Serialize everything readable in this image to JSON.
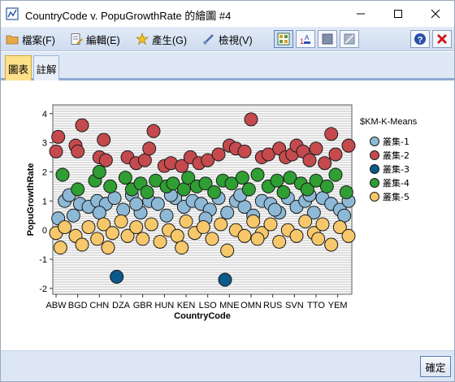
{
  "window": {
    "title": "CountryCode v. PopuGrowthRate 的繪圖 #4"
  },
  "menu": {
    "file": "檔案(F)",
    "edit": "編輯(E)",
    "generate": "產生(G)",
    "view": "檢視(V)"
  },
  "tabs": {
    "chart": "圖表",
    "notes": "註解"
  },
  "footer": {
    "ok_label": "確定"
  },
  "colors": {
    "cluster1": "#8db9d6",
    "cluster2": "#c44a4e",
    "cluster3": "#0a5a8c",
    "cluster4": "#2f9e33",
    "cluster5": "#f6c86b"
  },
  "chart_data": {
    "type": "scatter",
    "xlabel": "CountryCode",
    "ylabel": "PopuGrowthRate",
    "x_ticks": [
      "ABW",
      "BGD",
      "CHN",
      "DZA",
      "GBR",
      "HUN",
      "KEN",
      "LSO",
      "MNE",
      "OMN",
      "RUS",
      "SVN",
      "TTO",
      "YEM"
    ],
    "y_ticks": [
      -2,
      -1,
      0,
      1,
      2,
      3,
      4
    ],
    "ylim": [
      -2.2,
      4.3
    ],
    "legend_title": "$KM-K-Means",
    "legend_position": "right",
    "series": [
      {
        "name": "叢集-1",
        "color": "#8db9d6",
        "points": [
          [
            0.1,
            0.4
          ],
          [
            0.4,
            1.0
          ],
          [
            0.8,
            0.5
          ],
          [
            1.1,
            0.9
          ],
          [
            1.5,
            0.8
          ],
          [
            1.9,
            1.0
          ],
          [
            2.3,
            0.9
          ],
          [
            2.7,
            1.1
          ],
          [
            3.1,
            0.7
          ],
          [
            3.5,
            1.2
          ],
          [
            3.9,
            0.6
          ],
          [
            4.3,
            1.0
          ],
          [
            4.7,
            0.9
          ],
          [
            5.1,
            0.5
          ],
          [
            5.5,
            1.1
          ],
          [
            5.9,
            0.8
          ],
          [
            6.3,
            1.0
          ],
          [
            6.7,
            0.9
          ],
          [
            7.1,
            0.7
          ],
          [
            7.5,
            1.1
          ],
          [
            7.9,
            0.6
          ],
          [
            8.3,
            1.0
          ],
          [
            8.7,
            0.8
          ],
          [
            9.1,
            0.5
          ],
          [
            9.5,
            1.0
          ],
          [
            9.9,
            0.9
          ],
          [
            10.3,
            0.6
          ],
          [
            10.7,
            1.1
          ],
          [
            11.1,
            0.8
          ],
          [
            11.5,
            1.0
          ],
          [
            11.9,
            0.6
          ],
          [
            12.3,
            1.1
          ],
          [
            12.7,
            0.9
          ],
          [
            13.1,
            0.7
          ],
          [
            13.5,
            1.0
          ],
          [
            0.6,
            1.2
          ],
          [
            2.0,
            0.6
          ],
          [
            3.7,
            0.9
          ],
          [
            5.3,
            1.2
          ],
          [
            6.9,
            0.4
          ],
          [
            8.5,
            1.2
          ],
          [
            10.1,
            0.7
          ],
          [
            11.7,
            1.2
          ],
          [
            13.3,
            0.5
          ]
        ]
      },
      {
        "name": "叢集-2",
        "color": "#c44a4e",
        "points": [
          [
            0.0,
            2.7
          ],
          [
            0.1,
            3.2
          ],
          [
            0.9,
            2.9
          ],
          [
            1.0,
            2.7
          ],
          [
            1.2,
            3.6
          ],
          [
            2.0,
            2.5
          ],
          [
            2.2,
            3.1
          ],
          [
            2.3,
            2.4
          ],
          [
            3.3,
            2.5
          ],
          [
            3.7,
            2.3
          ],
          [
            4.1,
            2.4
          ],
          [
            4.3,
            2.8
          ],
          [
            4.5,
            3.4
          ],
          [
            5.0,
            2.2
          ],
          [
            5.3,
            2.3
          ],
          [
            5.8,
            2.2
          ],
          [
            6.2,
            2.5
          ],
          [
            6.6,
            2.3
          ],
          [
            7.0,
            2.4
          ],
          [
            7.5,
            2.6
          ],
          [
            8.0,
            2.9
          ],
          [
            8.3,
            2.8
          ],
          [
            8.7,
            2.7
          ],
          [
            9.0,
            3.8
          ],
          [
            9.5,
            2.5
          ],
          [
            9.8,
            2.6
          ],
          [
            10.3,
            2.8
          ],
          [
            10.6,
            2.5
          ],
          [
            10.9,
            2.6
          ],
          [
            11.1,
            2.9
          ],
          [
            11.4,
            2.7
          ],
          [
            11.7,
            2.4
          ],
          [
            12.0,
            2.8
          ],
          [
            12.4,
            2.3
          ],
          [
            12.7,
            3.3
          ],
          [
            12.9,
            2.6
          ],
          [
            13.5,
            2.9
          ]
        ]
      },
      {
        "name": "叢集-3",
        "color": "#0a5a8c",
        "points": [
          [
            2.8,
            -1.6
          ],
          [
            7.8,
            -1.7
          ]
        ]
      },
      {
        "name": "叢集-4",
        "color": "#2f9e33",
        "points": [
          [
            0.3,
            1.9
          ],
          [
            1.0,
            1.4
          ],
          [
            1.8,
            1.7
          ],
          [
            2.0,
            2.0
          ],
          [
            2.5,
            1.5
          ],
          [
            3.2,
            1.8
          ],
          [
            3.5,
            1.4
          ],
          [
            3.9,
            1.6
          ],
          [
            4.2,
            1.3
          ],
          [
            4.6,
            1.7
          ],
          [
            5.1,
            1.5
          ],
          [
            5.4,
            1.6
          ],
          [
            5.9,
            1.4
          ],
          [
            6.1,
            1.8
          ],
          [
            6.5,
            1.5
          ],
          [
            6.9,
            1.6
          ],
          [
            7.3,
            1.3
          ],
          [
            7.7,
            1.7
          ],
          [
            8.1,
            1.6
          ],
          [
            8.6,
            1.8
          ],
          [
            8.9,
            1.4
          ],
          [
            9.3,
            1.9
          ],
          [
            9.8,
            1.5
          ],
          [
            10.2,
            1.7
          ],
          [
            10.5,
            1.3
          ],
          [
            10.8,
            1.8
          ],
          [
            11.3,
            1.6
          ],
          [
            11.6,
            1.4
          ],
          [
            12.0,
            1.7
          ],
          [
            12.5,
            1.5
          ],
          [
            12.9,
            1.9
          ],
          [
            13.4,
            1.3
          ]
        ]
      },
      {
        "name": "叢集-5",
        "color": "#f6c86b",
        "points": [
          [
            0.0,
            -0.1
          ],
          [
            0.2,
            -0.6
          ],
          [
            0.4,
            0.1
          ],
          [
            0.9,
            -0.2
          ],
          [
            1.2,
            -0.5
          ],
          [
            1.5,
            0.1
          ],
          [
            1.9,
            -0.3
          ],
          [
            2.2,
            0.2
          ],
          [
            2.6,
            -0.1
          ],
          [
            3.0,
            0.3
          ],
          [
            3.3,
            -0.2
          ],
          [
            3.7,
            0.1
          ],
          [
            4.0,
            -0.3
          ],
          [
            4.4,
            0.2
          ],
          [
            4.8,
            -0.4
          ],
          [
            5.2,
            0.0
          ],
          [
            5.6,
            -0.2
          ],
          [
            6.0,
            0.3
          ],
          [
            6.4,
            -0.1
          ],
          [
            6.8,
            0.1
          ],
          [
            7.2,
            -0.3
          ],
          [
            7.6,
            0.2
          ],
          [
            7.9,
            -0.7
          ],
          [
            8.3,
            0.0
          ],
          [
            8.7,
            -0.2
          ],
          [
            9.1,
            0.3
          ],
          [
            9.5,
            -0.1
          ],
          [
            9.9,
            0.2
          ],
          [
            10.3,
            -0.4
          ],
          [
            10.7,
            0.0
          ],
          [
            11.1,
            -0.2
          ],
          [
            11.5,
            0.3
          ],
          [
            11.9,
            -0.1
          ],
          [
            12.3,
            0.2
          ],
          [
            12.7,
            -0.5
          ],
          [
            13.1,
            0.1
          ],
          [
            13.5,
            -0.2
          ],
          [
            2.4,
            -0.6
          ],
          [
            5.8,
            -0.6
          ],
          [
            9.3,
            -0.3
          ],
          [
            12.1,
            -0.3
          ]
        ]
      }
    ]
  }
}
